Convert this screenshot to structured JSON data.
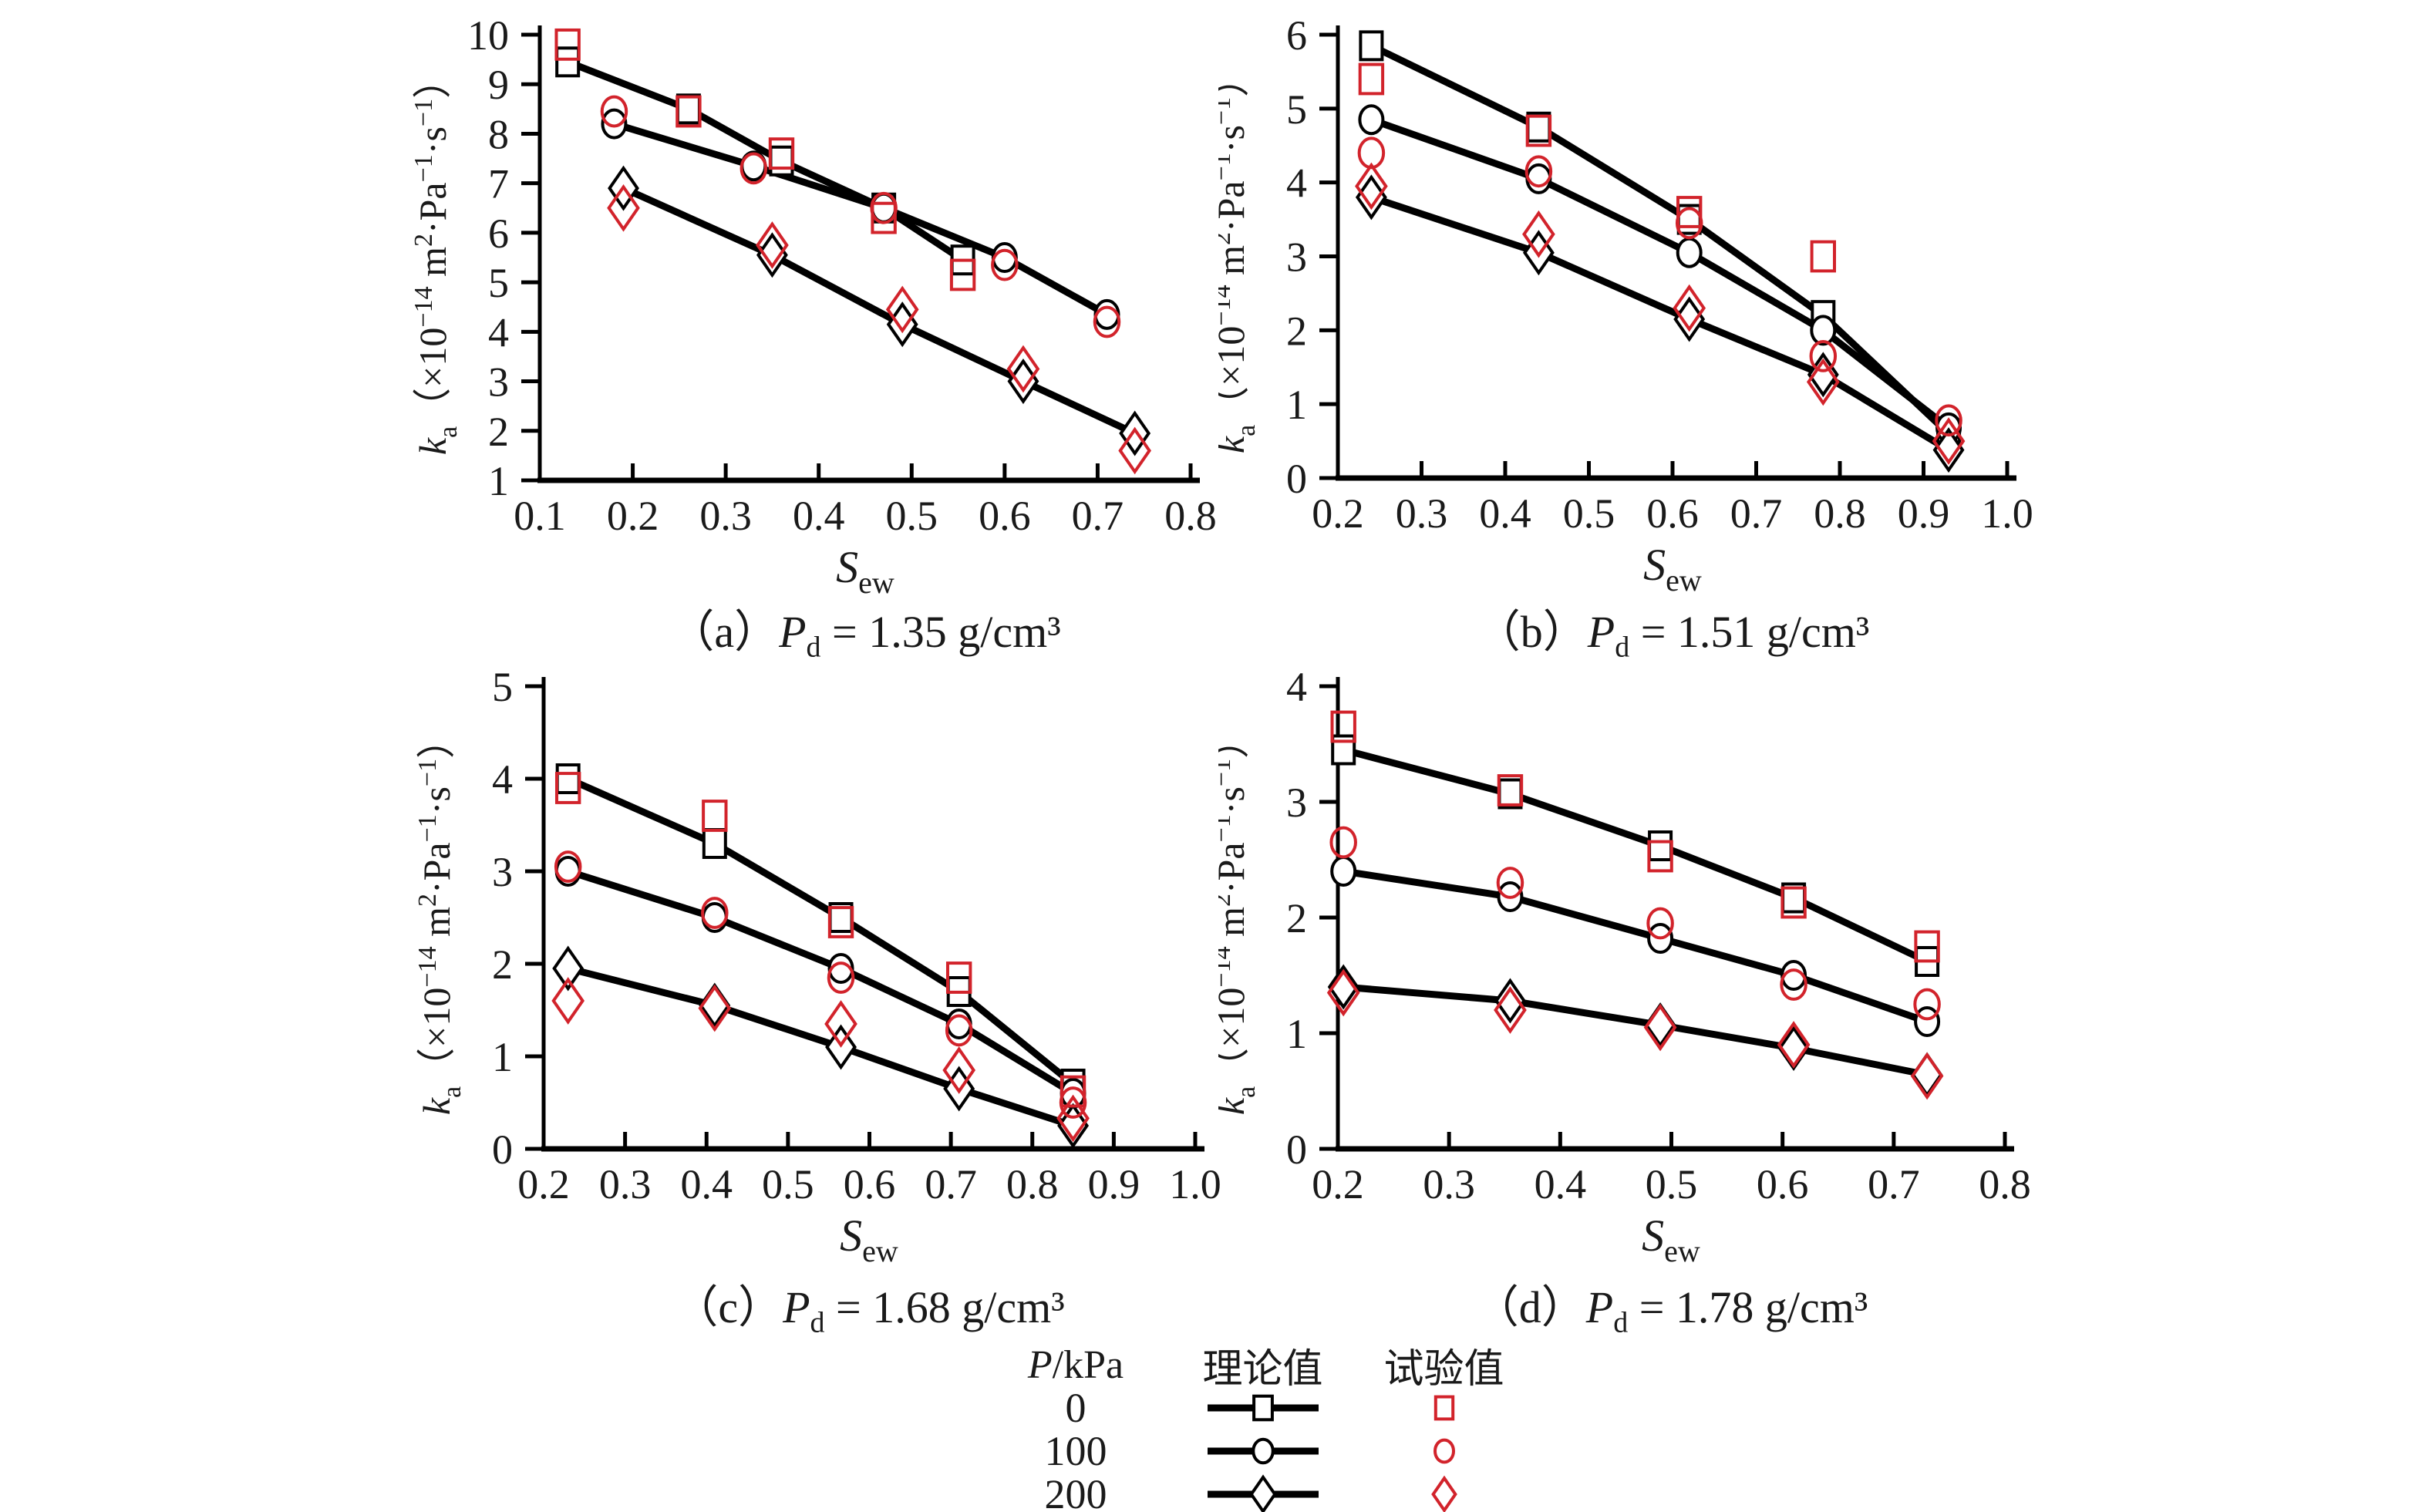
{
  "figure": {
    "background": "#ffffff",
    "axis_color": "#000000",
    "theory_color": "#000000",
    "experiment_color": "#d2232b"
  },
  "labels": {
    "y_k": "k",
    "y_k_sub": "a",
    "y_open": "（×10",
    "y_exp": "−14",
    "y_m": " m",
    "y_m_sup": "2",
    "y_pa": "·Pa",
    "y_pa_sup": "−1",
    "y_s": "·s",
    "y_s_sup": "−1",
    "y_close": "）",
    "x_s": "S",
    "x_sub": "ew"
  },
  "legend": {
    "header": {
      "p": "P",
      "p_rest": "/kPa",
      "theory": "理论值",
      "experiment": "试验值"
    },
    "rows": [
      {
        "pressure": "0",
        "marker": "square"
      },
      {
        "pressure": "100",
        "marker": "circle"
      },
      {
        "pressure": "200",
        "marker": "diamond"
      }
    ]
  },
  "chart_data": [
    {
      "id": "a",
      "type": "line",
      "caption": {
        "prefix": "（a）",
        "symbol": "P",
        "sub": "d",
        "rest": " = 1.35 g/cm³"
      },
      "xlabel": "Sew",
      "ylabel": "ka (×10-14 m2·Pa-1·s-1)",
      "xlim": [
        0.1,
        0.8
      ],
      "ylim": [
        1,
        10
      ],
      "xticks": [
        "0.1",
        "0.2",
        "0.3",
        "0.4",
        "0.5",
        "0.6",
        "0.7",
        "0.8"
      ],
      "yticks": [
        "1",
        "2",
        "3",
        "4",
        "5",
        "6",
        "7",
        "8",
        "9",
        "10"
      ],
      "series": [
        {
          "id": "p0-theory",
          "pressure_kpa": 0,
          "kind": "theory",
          "marker": "square",
          "line": true,
          "points": [
            [
              0.13,
              9.45
            ],
            [
              0.26,
              8.5
            ],
            [
              0.36,
              7.45
            ],
            [
              0.47,
              6.5
            ],
            [
              0.555,
              5.45
            ]
          ]
        },
        {
          "id": "p100-theory",
          "pressure_kpa": 100,
          "kind": "theory",
          "marker": "circle",
          "line": true,
          "points": [
            [
              0.18,
              8.2
            ],
            [
              0.33,
              7.35
            ],
            [
              0.47,
              6.5
            ],
            [
              0.6,
              5.5
            ],
            [
              0.71,
              4.35
            ]
          ]
        },
        {
          "id": "p200-theory",
          "pressure_kpa": 200,
          "kind": "theory",
          "marker": "diamond",
          "line": true,
          "points": [
            [
              0.19,
              6.9
            ],
            [
              0.35,
              5.55
            ],
            [
              0.49,
              4.15
            ],
            [
              0.62,
              3.0
            ],
            [
              0.74,
              1.95
            ]
          ]
        },
        {
          "id": "p0-exp",
          "pressure_kpa": 0,
          "kind": "experiment",
          "marker": "square",
          "line": false,
          "points": [
            [
              0.13,
              9.8
            ],
            [
              0.26,
              8.45
            ],
            [
              0.36,
              7.6
            ],
            [
              0.47,
              6.3
            ],
            [
              0.555,
              5.15
            ]
          ]
        },
        {
          "id": "p100-exp",
          "pressure_kpa": 100,
          "kind": "experiment",
          "marker": "circle",
          "line": false,
          "points": [
            [
              0.18,
              8.45
            ],
            [
              0.33,
              7.3
            ],
            [
              0.47,
              6.5
            ],
            [
              0.6,
              5.35
            ],
            [
              0.71,
              4.2
            ]
          ]
        },
        {
          "id": "p200-exp",
          "pressure_kpa": 200,
          "kind": "experiment",
          "marker": "diamond",
          "line": false,
          "points": [
            [
              0.19,
              6.5
            ],
            [
              0.35,
              5.75
            ],
            [
              0.49,
              4.45
            ],
            [
              0.62,
              3.25
            ],
            [
              0.74,
              1.6
            ]
          ]
        }
      ]
    },
    {
      "id": "b",
      "type": "line",
      "caption": {
        "prefix": "（b）",
        "symbol": "P",
        "sub": "d",
        "rest": " = 1.51 g/cm³"
      },
      "xlabel": "Sew",
      "ylabel": "ka (×10-14 m2·Pa-1·s-1)",
      "xlim": [
        0.2,
        1.0
      ],
      "ylim": [
        0,
        6
      ],
      "xticks": [
        "0.2",
        "0.3",
        "0.4",
        "0.5",
        "0.6",
        "0.7",
        "0.8",
        "0.9",
        "1.0"
      ],
      "yticks": [
        "0",
        "1",
        "2",
        "3",
        "4",
        "5",
        "6"
      ],
      "series": [
        {
          "id": "p0-theory",
          "pressure_kpa": 0,
          "kind": "theory",
          "marker": "square",
          "line": true,
          "points": [
            [
              0.24,
              5.85
            ],
            [
              0.44,
              4.75
            ],
            [
              0.62,
              3.5
            ],
            [
              0.78,
              2.2
            ],
            [
              0.93,
              0.6
            ]
          ]
        },
        {
          "id": "p100-theory",
          "pressure_kpa": 100,
          "kind": "theory",
          "marker": "circle",
          "line": true,
          "points": [
            [
              0.24,
              4.85
            ],
            [
              0.44,
              4.05
            ],
            [
              0.62,
              3.05
            ],
            [
              0.78,
              2.0
            ],
            [
              0.93,
              0.68
            ]
          ]
        },
        {
          "id": "p200-theory",
          "pressure_kpa": 200,
          "kind": "theory",
          "marker": "diamond",
          "line": true,
          "points": [
            [
              0.24,
              3.8
            ],
            [
              0.44,
              3.05
            ],
            [
              0.62,
              2.15
            ],
            [
              0.78,
              1.4
            ],
            [
              0.93,
              0.38
            ]
          ]
        },
        {
          "id": "p0-exp",
          "pressure_kpa": 0,
          "kind": "experiment",
          "marker": "square",
          "line": false,
          "points": [
            [
              0.24,
              5.4
            ],
            [
              0.44,
              4.7
            ],
            [
              0.62,
              3.6
            ],
            [
              0.78,
              3.0
            ]
          ]
        },
        {
          "id": "p100-exp",
          "pressure_kpa": 100,
          "kind": "experiment",
          "marker": "circle",
          "line": false,
          "points": [
            [
              0.24,
              4.4
            ],
            [
              0.44,
              4.15
            ],
            [
              0.62,
              3.45
            ],
            [
              0.78,
              1.65
            ],
            [
              0.93,
              0.78
            ]
          ]
        },
        {
          "id": "p200-exp",
          "pressure_kpa": 200,
          "kind": "experiment",
          "marker": "diamond",
          "line": false,
          "points": [
            [
              0.24,
              3.95
            ],
            [
              0.44,
              3.3
            ],
            [
              0.62,
              2.3
            ],
            [
              0.78,
              1.3
            ],
            [
              0.93,
              0.5
            ]
          ]
        }
      ]
    },
    {
      "id": "c",
      "type": "line",
      "caption": {
        "prefix": "（c）",
        "symbol": "P",
        "sub": "d",
        "rest": " = 1.68 g/cm³"
      },
      "xlabel": "Sew",
      "ylabel": "ka (×10-14 m2·Pa-1·s-1)",
      "xlim": [
        0.2,
        1.0
      ],
      "ylim": [
        0,
        5
      ],
      "xticks": [
        "0.2",
        "0.3",
        "0.4",
        "0.5",
        "0.6",
        "0.7",
        "0.8",
        "0.9",
        "1.0"
      ],
      "yticks": [
        "0",
        "1",
        "2",
        "3",
        "4",
        "5"
      ],
      "series": [
        {
          "id": "p0-theory",
          "pressure_kpa": 0,
          "kind": "theory",
          "marker": "square",
          "line": true,
          "points": [
            [
              0.23,
              4.0
            ],
            [
              0.41,
              3.3
            ],
            [
              0.565,
              2.5
            ],
            [
              0.71,
              1.7
            ],
            [
              0.85,
              0.7
            ]
          ]
        },
        {
          "id": "p100-theory",
          "pressure_kpa": 100,
          "kind": "theory",
          "marker": "circle",
          "line": true,
          "points": [
            [
              0.23,
              3.0
            ],
            [
              0.41,
              2.5
            ],
            [
              0.565,
              1.95
            ],
            [
              0.71,
              1.35
            ],
            [
              0.85,
              0.6
            ]
          ]
        },
        {
          "id": "p200-theory",
          "pressure_kpa": 200,
          "kind": "theory",
          "marker": "diamond",
          "line": true,
          "points": [
            [
              0.23,
              1.95
            ],
            [
              0.41,
              1.55
            ],
            [
              0.565,
              1.1
            ],
            [
              0.71,
              0.65
            ],
            [
              0.85,
              0.25
            ]
          ]
        },
        {
          "id": "p0-exp",
          "pressure_kpa": 0,
          "kind": "experiment",
          "marker": "square",
          "line": false,
          "points": [
            [
              0.23,
              3.9
            ],
            [
              0.41,
              3.6
            ],
            [
              0.565,
              2.45
            ],
            [
              0.71,
              1.85
            ],
            [
              0.85,
              0.62
            ]
          ]
        },
        {
          "id": "p100-exp",
          "pressure_kpa": 100,
          "kind": "experiment",
          "marker": "circle",
          "line": false,
          "points": [
            [
              0.23,
              3.05
            ],
            [
              0.41,
              2.55
            ],
            [
              0.565,
              1.85
            ],
            [
              0.71,
              1.28
            ],
            [
              0.85,
              0.5
            ]
          ]
        },
        {
          "id": "p200-exp",
          "pressure_kpa": 200,
          "kind": "experiment",
          "marker": "diamond",
          "line": false,
          "points": [
            [
              0.23,
              1.6
            ],
            [
              0.41,
              1.52
            ],
            [
              0.565,
              1.35
            ],
            [
              0.71,
              0.85
            ],
            [
              0.85,
              0.33
            ]
          ]
        }
      ]
    },
    {
      "id": "d",
      "type": "line",
      "caption": {
        "prefix": "（d）",
        "symbol": "P",
        "sub": "d",
        "rest": " = 1.78 g/cm³"
      },
      "xlabel": "Sew",
      "ylabel": "ka (×10-14 m2·Pa-1·s-1)",
      "xlim": [
        0.2,
        0.8
      ],
      "ylim": [
        0,
        4
      ],
      "xticks": [
        "0.2",
        "0.3",
        "0.4",
        "0.5",
        "0.6",
        "0.7",
        "0.8"
      ],
      "yticks": [
        "0",
        "1",
        "2",
        "3",
        "4"
      ],
      "series": [
        {
          "id": "p0-theory",
          "pressure_kpa": 0,
          "kind": "theory",
          "marker": "square",
          "line": true,
          "points": [
            [
              0.205,
              3.45
            ],
            [
              0.355,
              3.07
            ],
            [
              0.49,
              2.62
            ],
            [
              0.61,
              2.17
            ],
            [
              0.73,
              1.62
            ]
          ]
        },
        {
          "id": "p100-theory",
          "pressure_kpa": 100,
          "kind": "theory",
          "marker": "circle",
          "line": true,
          "points": [
            [
              0.205,
              2.4
            ],
            [
              0.355,
              2.18
            ],
            [
              0.49,
              1.82
            ],
            [
              0.61,
              1.5
            ],
            [
              0.73,
              1.1
            ]
          ]
        },
        {
          "id": "p200-theory",
          "pressure_kpa": 200,
          "kind": "theory",
          "marker": "diamond",
          "line": true,
          "points": [
            [
              0.205,
              1.4
            ],
            [
              0.355,
              1.28
            ],
            [
              0.49,
              1.07
            ],
            [
              0.61,
              0.87
            ],
            [
              0.73,
              0.64
            ]
          ]
        },
        {
          "id": "p0-exp",
          "pressure_kpa": 0,
          "kind": "experiment",
          "marker": "square",
          "line": false,
          "points": [
            [
              0.205,
              3.65
            ],
            [
              0.355,
              3.1
            ],
            [
              0.49,
              2.53
            ],
            [
              0.61,
              2.13
            ],
            [
              0.73,
              1.75
            ]
          ]
        },
        {
          "id": "p100-exp",
          "pressure_kpa": 100,
          "kind": "experiment",
          "marker": "circle",
          "line": false,
          "points": [
            [
              0.205,
              2.65
            ],
            [
              0.355,
              2.3
            ],
            [
              0.49,
              1.95
            ],
            [
              0.61,
              1.42
            ],
            [
              0.73,
              1.25
            ]
          ]
        },
        {
          "id": "p200-exp",
          "pressure_kpa": 200,
          "kind": "experiment",
          "marker": "diamond",
          "line": false,
          "points": [
            [
              0.205,
              1.35
            ],
            [
              0.355,
              1.2
            ],
            [
              0.49,
              1.05
            ],
            [
              0.61,
              0.9
            ],
            [
              0.73,
              0.63
            ]
          ]
        }
      ]
    }
  ]
}
